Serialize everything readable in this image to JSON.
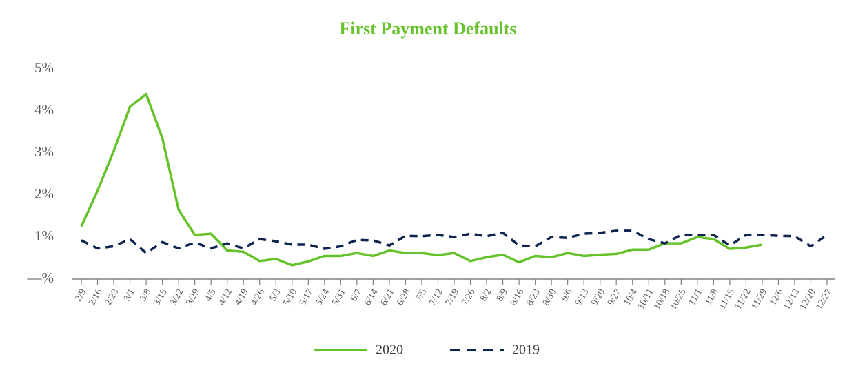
{
  "chart_data": {
    "type": "line",
    "title": "First Payment Defaults",
    "categories": [
      "2/9",
      "2/16",
      "2/23",
      "3/1",
      "3/8",
      "3/15",
      "3/22",
      "3/29",
      "4/5",
      "4/12",
      "4/19",
      "4/26",
      "5/3",
      "5/10",
      "5/17",
      "5/24",
      "5/31",
      "6/7",
      "6/14",
      "6/21",
      "6/28",
      "7/5",
      "7/12",
      "7/19",
      "7/26",
      "8/2",
      "8/9",
      "8/16",
      "8/23",
      "8/30",
      "9/6",
      "9/13",
      "9/20",
      "9/27",
      "10/4",
      "10/11",
      "10/18",
      "10/25",
      "11/1",
      "11/8",
      "11/15",
      "11/22",
      "11/29",
      "12/6",
      "12/13",
      "12/20",
      "12/27"
    ],
    "series": [
      {
        "name": "2020",
        "color": "#66c22a",
        "dash": false,
        "values": [
          1.25,
          2.1,
          3.05,
          4.1,
          4.4,
          3.35,
          1.65,
          1.05,
          1.08,
          0.68,
          0.65,
          0.43,
          0.48,
          0.33,
          0.42,
          0.55,
          0.55,
          0.62,
          0.55,
          0.68,
          0.62,
          0.62,
          0.57,
          0.62,
          0.43,
          0.52,
          0.58,
          0.4,
          0.55,
          0.52,
          0.62,
          0.55,
          0.58,
          0.6,
          0.7,
          0.7,
          0.85,
          0.85,
          1.0,
          0.95,
          0.72,
          0.75,
          0.82,
          null,
          null,
          null,
          null
        ]
      },
      {
        "name": "2019",
        "color": "#0d2350",
        "dash": true,
        "values": [
          0.92,
          0.73,
          0.78,
          0.95,
          0.62,
          0.88,
          0.73,
          0.87,
          0.73,
          0.85,
          0.73,
          0.95,
          0.9,
          0.82,
          0.82,
          0.72,
          0.78,
          0.93,
          0.92,
          0.8,
          1.03,
          1.02,
          1.05,
          1.0,
          1.08,
          1.02,
          1.1,
          0.8,
          0.78,
          1.0,
          0.98,
          1.08,
          1.1,
          1.15,
          1.15,
          0.95,
          0.85,
          1.05,
          1.05,
          1.05,
          0.8,
          1.05,
          1.05,
          1.03,
          1.02,
          0.78,
          1.05
        ]
      }
    ],
    "ylim": [
      0,
      5
    ],
    "yticks": [
      {
        "value": 0,
        "label": "—%"
      },
      {
        "value": 1,
        "label": "1%"
      },
      {
        "value": 2,
        "label": "2%"
      },
      {
        "value": 3,
        "label": "3%"
      },
      {
        "value": 4,
        "label": "4%"
      },
      {
        "value": 5,
        "label": "5%"
      }
    ],
    "grid": false
  }
}
